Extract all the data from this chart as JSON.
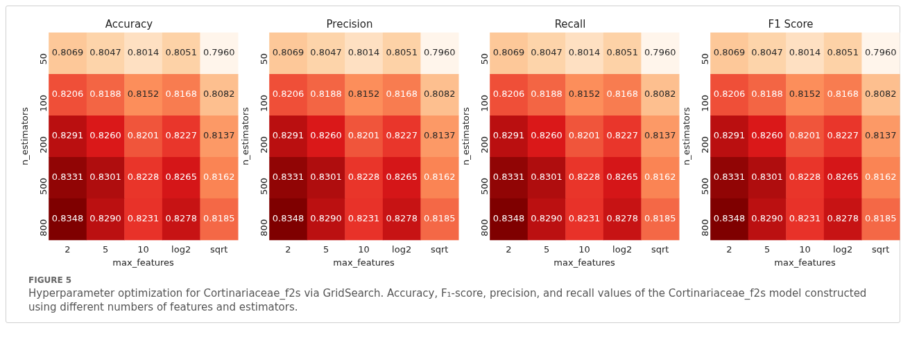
{
  "chart_data": [
    {
      "type": "heatmap",
      "title": "Accuracy",
      "xlabel": "max_features",
      "ylabel": "n_estimators",
      "categories": [
        "2",
        "5",
        "10",
        "log2",
        "sqrt"
      ],
      "y_categories": [
        "50",
        "100",
        "200",
        "500",
        "800"
      ],
      "cells": [
        [
          0.8069,
          0.8047,
          0.8014,
          0.8051,
          0.796
        ],
        [
          0.8206,
          0.8188,
          0.8152,
          0.8168,
          0.8082
        ],
        [
          0.8291,
          0.826,
          0.8201,
          0.8227,
          0.8137
        ],
        [
          0.8331,
          0.8301,
          0.8228,
          0.8265,
          0.8162
        ],
        [
          0.8348,
          0.829,
          0.8231,
          0.8278,
          0.8185
        ]
      ],
      "cell_labels": [
        [
          "0.8069",
          "0.8047",
          "0.8014",
          "0.8051",
          "0.7960"
        ],
        [
          "0.8206",
          "0.8188",
          "0.8152",
          "0.8168",
          "0.8082"
        ],
        [
          "0.8291",
          "0.8260",
          "0.8201",
          "0.8227",
          "0.8137"
        ],
        [
          "0.8331",
          "0.8301",
          "0.8228",
          "0.8265",
          "0.8162"
        ],
        [
          "0.8348",
          "0.8290",
          "0.8231",
          "0.8278",
          "0.8185"
        ]
      ],
      "data_labels": true,
      "annotations": [
        "FIGURE 5",
        "Hyperparameter optimization for Cortinariaceae_f2s via GridSearch. Accuracy, F₁-score, precision, and recall values of the Cortinariaceae_f2s model constructed using different numbers of features and estimators."
      ]
    },
    {
      "type": "heatmap",
      "title": "Precision",
      "data_labels": true,
      "xlabel": "max_features",
      "ylabel": "n_estimators",
      "categories": [
        "2",
        "5",
        "10",
        "log2",
        "sqrt"
      ],
      "y_categories": [
        "50",
        "100",
        "200",
        "500",
        "800"
      ],
      "cells": [
        [
          0.8069,
          0.8047,
          0.8014,
          0.8051,
          0.796
        ],
        [
          0.8206,
          0.8188,
          0.8152,
          0.8168,
          0.8082
        ],
        [
          0.8291,
          0.826,
          0.8201,
          0.8227,
          0.8137
        ],
        [
          0.8331,
          0.8301,
          0.8228,
          0.8265,
          0.8162
        ],
        [
          0.8348,
          0.829,
          0.8231,
          0.8278,
          0.8185
        ]
      ],
      "cell_labels": [
        [
          "0.8069",
          "0.8047",
          "0.8014",
          "0.8051",
          "0.7960"
        ],
        [
          "0.8206",
          "0.8188",
          "0.8152",
          "0.8168",
          "0.8082"
        ],
        [
          "0.8291",
          "0.8260",
          "0.8201",
          "0.8227",
          "0.8137"
        ],
        [
          "0.8331",
          "0.8301",
          "0.8228",
          "0.8265",
          "0.8162"
        ],
        [
          "0.8348",
          "0.8290",
          "0.8231",
          "0.8278",
          "0.8185"
        ]
      ]
    },
    {
      "type": "heatmap",
      "title": "Recall",
      "data_labels": true,
      "xlabel": "max_features",
      "ylabel": "n_estimators",
      "categories": [
        "2",
        "5",
        "10",
        "log2",
        "sqrt"
      ],
      "y_categories": [
        "50",
        "100",
        "200",
        "500",
        "800"
      ],
      "cells": [
        [
          0.8069,
          0.8047,
          0.8014,
          0.8051,
          0.796
        ],
        [
          0.8206,
          0.8188,
          0.8152,
          0.8168,
          0.8082
        ],
        [
          0.8291,
          0.826,
          0.8201,
          0.8227,
          0.8137
        ],
        [
          0.8331,
          0.8301,
          0.8228,
          0.8265,
          0.8162
        ],
        [
          0.8348,
          0.829,
          0.8231,
          0.8278,
          0.8185
        ]
      ],
      "cell_labels": [
        [
          "0.8069",
          "0.8047",
          "0.8014",
          "0.8051",
          "0.7960"
        ],
        [
          "0.8206",
          "0.8188",
          "0.8152",
          "0.8168",
          "0.8082"
        ],
        [
          "0.8291",
          "0.8260",
          "0.8201",
          "0.8227",
          "0.8137"
        ],
        [
          "0.8331",
          "0.8301",
          "0.8228",
          "0.8265",
          "0.8162"
        ],
        [
          "0.8348",
          "0.8290",
          "0.8231",
          "0.8278",
          "0.8185"
        ]
      ]
    },
    {
      "type": "heatmap",
      "title": "F1 Score",
      "data_labels": true,
      "xlabel": "max_features",
      "ylabel": "n_estimators",
      "categories": [
        "2",
        "5",
        "10",
        "log2",
        "sqrt"
      ],
      "y_categories": [
        "50",
        "100",
        "200",
        "500",
        "800"
      ],
      "cells": [
        [
          0.8069,
          0.8047,
          0.8014,
          0.8051,
          0.796
        ],
        [
          0.8206,
          0.8188,
          0.8152,
          0.8168,
          0.8082
        ],
        [
          0.8291,
          0.826,
          0.8201,
          0.8227,
          0.8137
        ],
        [
          0.8331,
          0.8301,
          0.8228,
          0.8265,
          0.8162
        ],
        [
          0.8348,
          0.829,
          0.8231,
          0.8278,
          0.8185
        ]
      ],
      "cell_labels": [
        [
          "0.8069",
          "0.8047",
          "0.8014",
          "0.8051",
          "0.7960"
        ],
        [
          "0.8206",
          "0.8188",
          "0.8152",
          "0.8168",
          "0.8082"
        ],
        [
          "0.8291",
          "0.8260",
          "0.8201",
          "0.8227",
          "0.8137"
        ],
        [
          "0.8331",
          "0.8301",
          "0.8228",
          "0.8265",
          "0.8162"
        ],
        [
          "0.8348",
          "0.8290",
          "0.8231",
          "0.8278",
          "0.8185"
        ]
      ]
    }
  ]
}
